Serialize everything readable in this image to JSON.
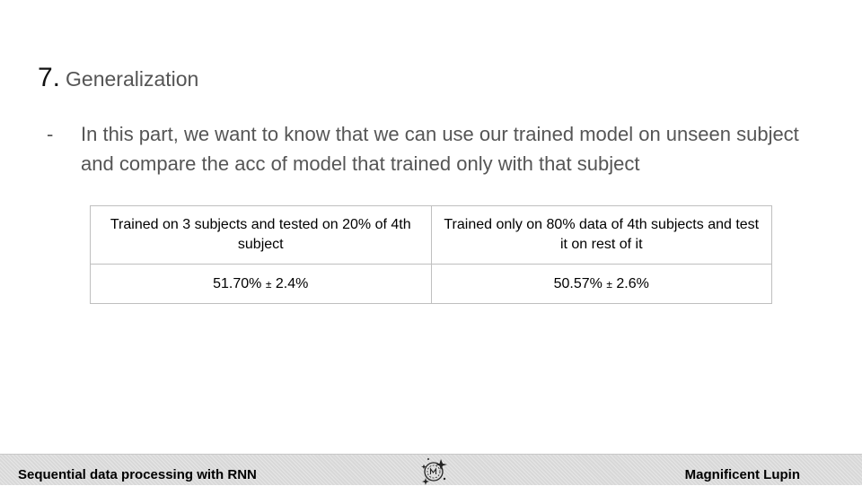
{
  "slide": {
    "number": "7.",
    "title": "Generalization",
    "bullet_marker": "-",
    "bullet_text": "In this part, we want to know that we can use our trained model on unseen subject and compare the acc of model that trained only with that subject"
  },
  "table": {
    "headers": [
      "Trained on 3 subjects and tested on 20% of 4th subject",
      "Trained only on 80% data of 4th subjects and test it on rest of it"
    ],
    "rows": [
      {
        "cells": [
          {
            "value": "51.70%",
            "pm": "±",
            "err": "2.4%"
          },
          {
            "value": "50.57%",
            "pm": "±",
            "err": "2.6%"
          }
        ]
      }
    ]
  },
  "footer": {
    "left": "Sequential data processing with RNN",
    "right": "Magnificent Lupin",
    "logo_icon": "lupin-logo-icon"
  }
}
